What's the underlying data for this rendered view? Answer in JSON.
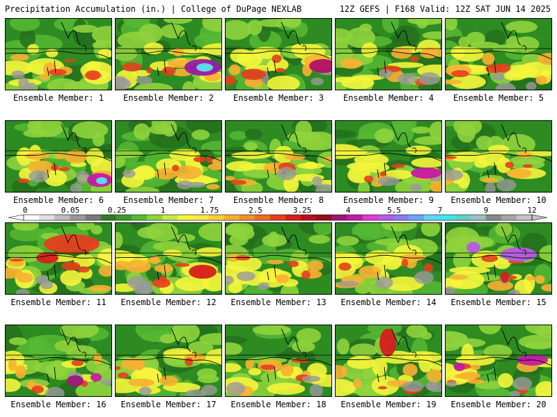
{
  "header": {
    "left": "Precipitation Accumulation (in.) | College of DuPage NEXLAB",
    "right": "12Z GEFS | F168 Valid: 12Z SAT JUN 14 2025"
  },
  "legend": {
    "tick_labels": [
      "0",
      "0.05",
      "0.25",
      "1",
      "1.75",
      "2.5",
      "3.25",
      "4",
      "5.5",
      "7",
      "9",
      "12"
    ],
    "colors": [
      "#ffffff",
      "#e0e0e0",
      "#bdbdbd",
      "#9a9a9a",
      "#7a7a7a",
      "#2f7d24",
      "#3b9a2b",
      "#56b832",
      "#8fd33d",
      "#c6e84a",
      "#f5f53c",
      "#fde74a",
      "#fbcf3e",
      "#f8b032",
      "#f48f28",
      "#ee6b22",
      "#e4401d",
      "#d71c1c",
      "#b8101a",
      "#92101c",
      "#a0167a",
      "#c51aa8",
      "#e23ad2",
      "#b65ae6",
      "#8a7cf0",
      "#6aa6f5",
      "#5fd6f5",
      "#3fe8e8",
      "#5ed2c6",
      "#9bc2c0",
      "#8a8a8a",
      "#a6a6a6",
      "#c2c2c2"
    ]
  },
  "members": [
    {
      "label": "Ensemble Member: 1"
    },
    {
      "label": "Ensemble Member: 2"
    },
    {
      "label": "Ensemble Member: 3"
    },
    {
      "label": "Ensemble Member: 4"
    },
    {
      "label": "Ensemble Member: 5"
    },
    {
      "label": "Ensemble Member: 6"
    },
    {
      "label": "Ensemble Member: 7"
    },
    {
      "label": "Ensemble Member: 8"
    },
    {
      "label": "Ensemble Member: 9"
    },
    {
      "label": "Ensemble Member: 10"
    },
    {
      "label": "Ensemble Member: 11"
    },
    {
      "label": "Ensemble Member: 12"
    },
    {
      "label": "Ensemble Member: 13"
    },
    {
      "label": "Ensemble Member: 14"
    },
    {
      "label": "Ensemble Member: 15"
    },
    {
      "label": "Ensemble Member: 16"
    },
    {
      "label": "Ensemble Member: 17"
    },
    {
      "label": "Ensemble Member: 18"
    },
    {
      "label": "Ensemble Member: 19"
    },
    {
      "label": "Ensemble Member: 20"
    }
  ]
}
